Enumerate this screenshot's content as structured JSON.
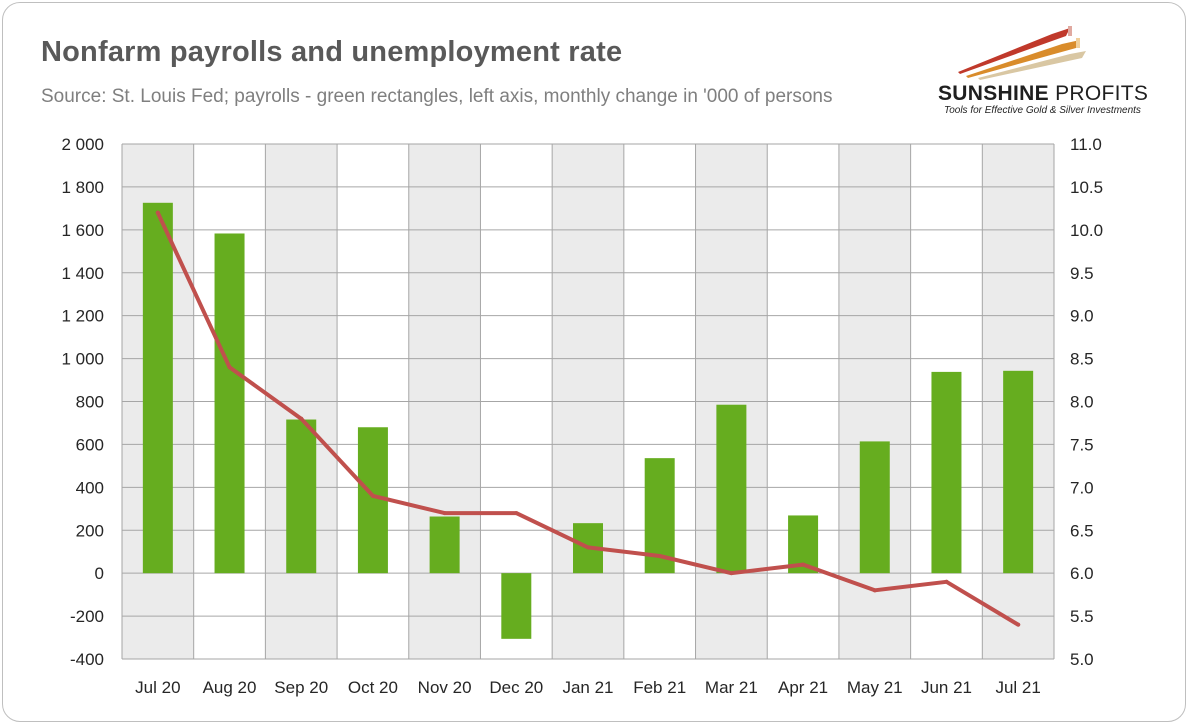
{
  "header": {
    "title": "Nonfarm payrolls and unemployment rate",
    "subtitle": "Source: St. Louis Fed; payrolls - green rectangles, left axis, monthly change in '000 of persons"
  },
  "logo": {
    "name_part1": "SUNSHINE",
    "name_part2": "PROFITS",
    "tagline": "Tools for Effective Gold & Silver Investments"
  },
  "colors": {
    "bar": "#66ad1f",
    "line": "#c0504d",
    "band": "#ebebeb",
    "grid": "#a6a6a6"
  },
  "chart_data": {
    "type": "bar",
    "categories": [
      "Jul 20",
      "Aug 20",
      "Sep 20",
      "Oct 20",
      "Nov 20",
      "Dec 20",
      "Jan 21",
      "Feb 21",
      "Mar 21",
      "Apr 21",
      "May 21",
      "Jun 21",
      "Jul 21"
    ],
    "series": [
      {
        "name": "Nonfarm payrolls (monthly change, '000)",
        "type": "bar",
        "axis": "left",
        "values": [
          1726,
          1583,
          716,
          680,
          264,
          -306,
          233,
          536,
          785,
          269,
          614,
          938,
          943
        ]
      },
      {
        "name": "Unemployment rate (%)",
        "type": "line",
        "axis": "right",
        "values": [
          10.2,
          8.4,
          7.8,
          6.9,
          6.7,
          6.7,
          6.3,
          6.2,
          6.0,
          6.1,
          5.8,
          5.9,
          5.4
        ]
      }
    ],
    "y_left": {
      "range": [
        -400,
        2000
      ],
      "ticks": [
        2000,
        1800,
        1600,
        1400,
        1200,
        1000,
        800,
        600,
        400,
        200,
        0,
        -200,
        -400
      ],
      "tick_labels": [
        "2 000",
        "1 800",
        "1 600",
        "1 400",
        "1 200",
        "1 000",
        "800",
        "600",
        "400",
        "200",
        "0",
        "-200",
        "-400"
      ]
    },
    "y_right": {
      "range": [
        5.0,
        11.0
      ],
      "ticks": [
        11.0,
        10.5,
        10.0,
        9.5,
        9.0,
        8.5,
        8.0,
        7.5,
        7.0,
        6.5,
        6.0,
        5.5,
        5.0
      ],
      "tick_labels": [
        "11.0",
        "10.5",
        "10.0",
        "9.5",
        "9.0",
        "8.5",
        "8.0",
        "7.5",
        "7.0",
        "6.5",
        "6.0",
        "5.5",
        "5.0"
      ]
    },
    "grid": true,
    "legend": "none"
  }
}
